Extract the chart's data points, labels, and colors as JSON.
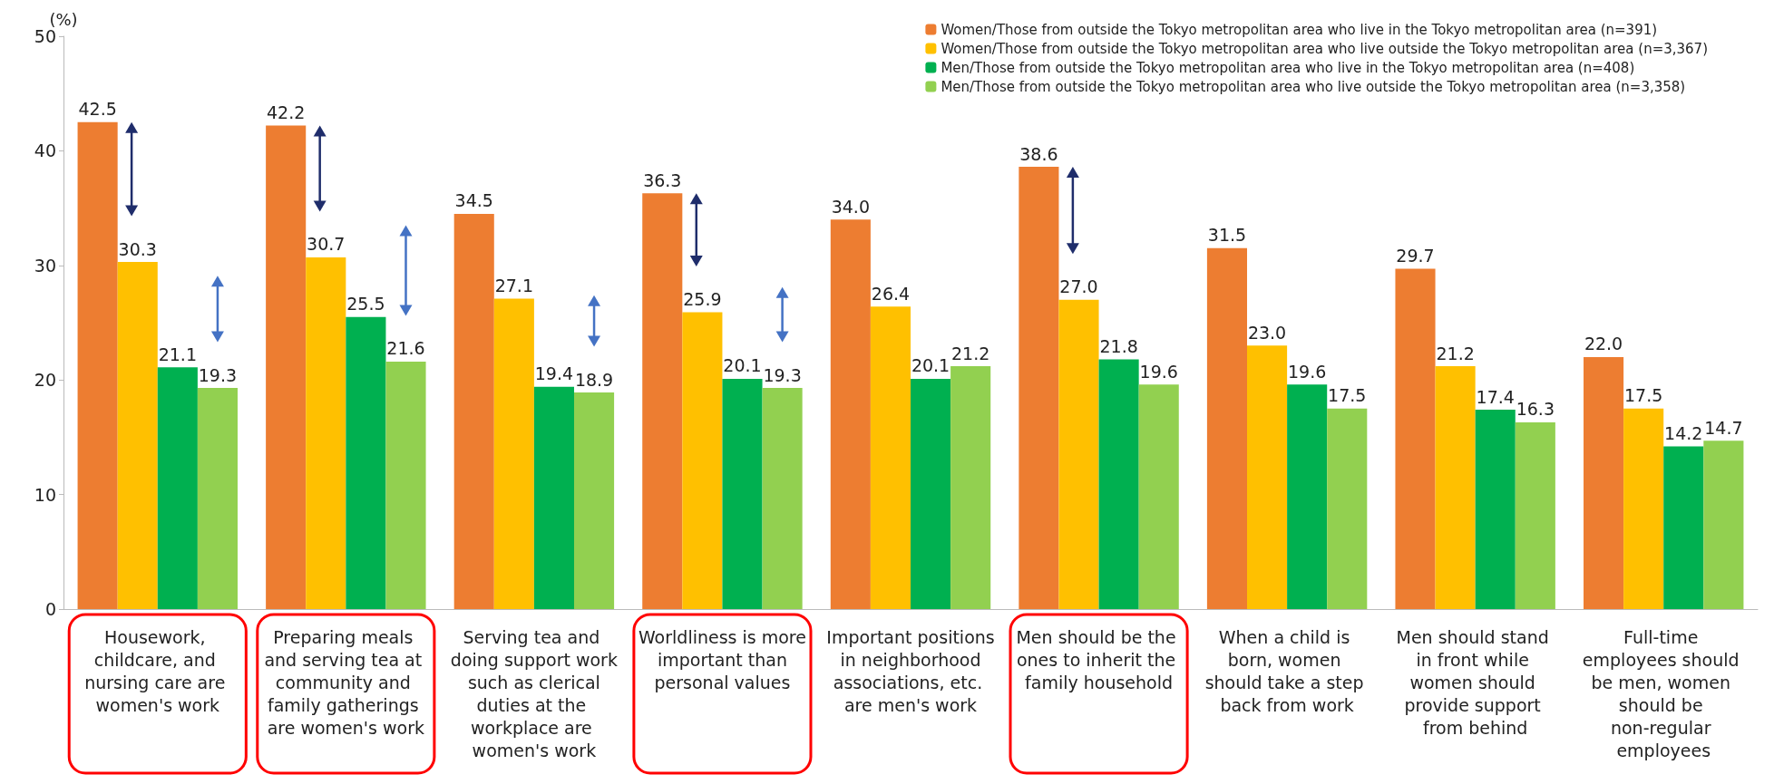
{
  "chart_data": {
    "type": "bar",
    "ylabel": "(%)",
    "categories": [
      "Housework, childcare, and nursing care are women's work",
      "Preparing meals and serving tea at community and family gatherings are women's work",
      "Serving tea and doing support work such as clerical duties at the workplace are women's work",
      "Worldliness is more important than personal values",
      "Important positions in neighborhood associations, etc. are men's work",
      "Men should be the ones to inherit the family household",
      "When a child is born, women should take a step back from work",
      "Men should stand in front while women should provide support from behind",
      "Full-time employees should be men, women should be non-regular employees"
    ],
    "series": [
      {
        "name": "Women/Those from outside the Tokyo metropolitan area who live in the Tokyo metropolitan area (n=391)",
        "color": "#ed7d31",
        "values": [
          42.5,
          42.2,
          34.5,
          36.3,
          34.0,
          38.6,
          31.5,
          29.7,
          22.0
        ],
        "value_labels": [
          "42.5",
          "42.2",
          "34.5",
          "36.3",
          "34.0",
          "38.6",
          "31.5",
          "29.7",
          "22.0"
        ]
      },
      {
        "name": "Women/Those from outside the Tokyo metropolitan area who live outside the Tokyo metropolitan area (n=3,367)",
        "color": "#ffc000",
        "values": [
          30.3,
          30.7,
          27.1,
          25.9,
          26.4,
          27.0,
          23.0,
          21.2,
          17.5
        ],
        "value_labels": [
          "30.3",
          "30.7",
          "27.1",
          "25.9",
          "26.4",
          "27.0",
          "23.0",
          "21.2",
          "17.5"
        ]
      },
      {
        "name": "Men/Those from outside the Tokyo metropolitan area who live in the Tokyo metropolitan area (n=408)",
        "color": "#00b050",
        "values": [
          21.1,
          25.5,
          19.4,
          20.1,
          20.1,
          21.8,
          19.6,
          17.4,
          14.2
        ],
        "value_labels": [
          "21.1",
          "25.5",
          "19.4",
          "20.1",
          "20.1",
          "21.8",
          "19.6",
          "17.4",
          "14.2"
        ]
      },
      {
        "name": "Men/Those from outside the Tokyo metropolitan area who live outside the Tokyo metropolitan area (n=3,358)",
        "color": "#92d050",
        "values": [
          19.3,
          21.6,
          18.9,
          19.3,
          21.2,
          19.6,
          17.5,
          16.3,
          14.7
        ],
        "value_labels": [
          "19.3",
          "21.6",
          "18.9",
          "19.3",
          "21.2",
          "19.6",
          "17.5",
          "16.3",
          "14.7"
        ]
      }
    ],
    "ylim": [
      0,
      50
    ],
    "yticks": [
      0,
      10,
      20,
      30,
      40,
      50
    ],
    "grid": false,
    "legend": "top right"
  }
}
